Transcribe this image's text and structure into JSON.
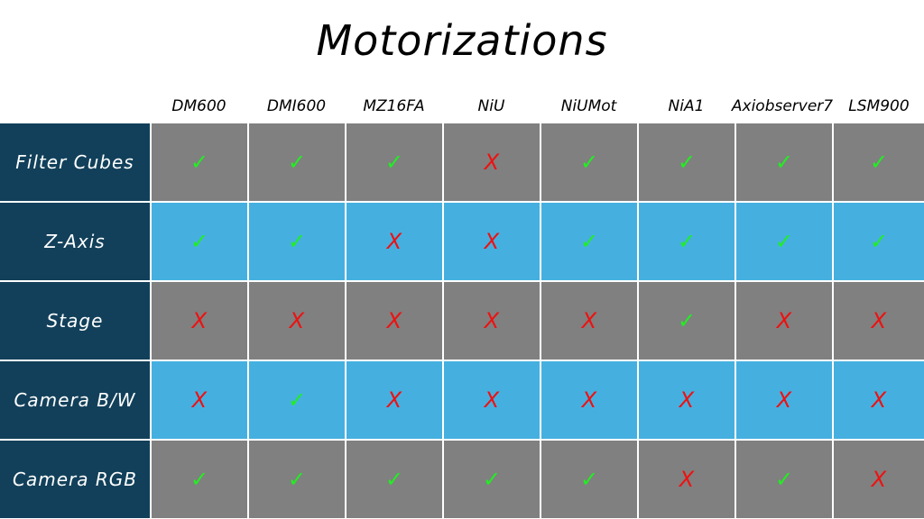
{
  "title": "Motorizations",
  "columns": [
    "DM600",
    "DMI600",
    "MZ16FA",
    "NiU",
    "NiUMot",
    "NiA1",
    "Axiobserver7",
    "LSM900"
  ],
  "marks": {
    "yes": "✓",
    "no": "X"
  },
  "colors": {
    "label_bg": "#12405a",
    "row_gray": "#808080",
    "row_blue": "#45b0e0",
    "yes": "#22ee22",
    "no": "#ee1111"
  },
  "rows": [
    {
      "label": "Filter Cubes",
      "style": "gray",
      "values": [
        "yes",
        "yes",
        "yes",
        "no",
        "yes",
        "yes",
        "yes",
        "yes"
      ]
    },
    {
      "label": "Z-Axis",
      "style": "blue",
      "values": [
        "yes",
        "yes",
        "no",
        "no",
        "yes",
        "yes",
        "yes",
        "yes"
      ]
    },
    {
      "label": "Stage",
      "style": "gray",
      "values": [
        "no",
        "no",
        "no",
        "no",
        "no",
        "yes",
        "no",
        "no"
      ]
    },
    {
      "label": "Camera B/W",
      "style": "blue",
      "values": [
        "no",
        "yes",
        "no",
        "no",
        "no",
        "no",
        "no",
        "no"
      ]
    },
    {
      "label": "Camera RGB",
      "style": "gray",
      "values": [
        "yes",
        "yes",
        "yes",
        "yes",
        "yes",
        "no",
        "yes",
        "no"
      ]
    }
  ]
}
